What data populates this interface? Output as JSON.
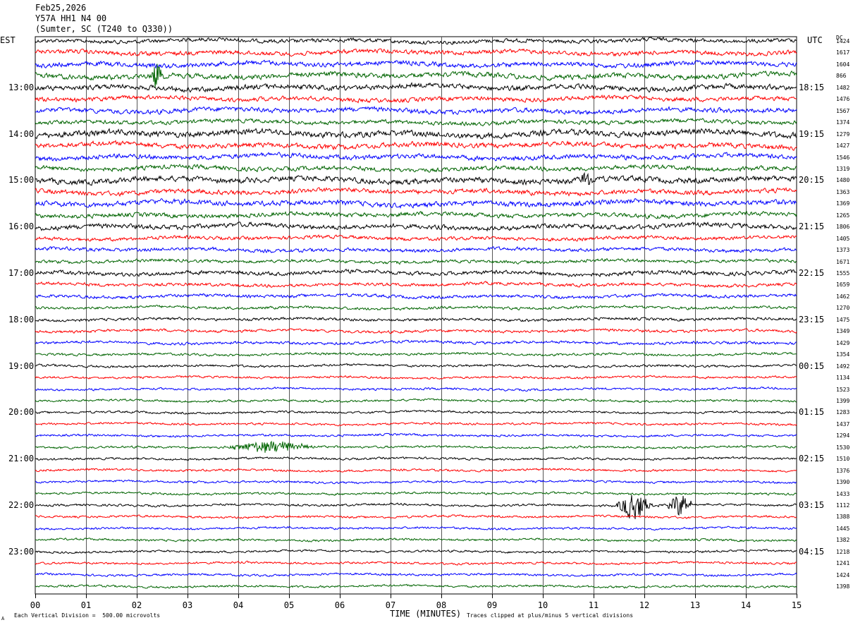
{
  "header": {
    "date": "Feb25,2026",
    "station": "Y57A HH1 N4 00",
    "location": "(Sumter, SC (T240 to Q330))"
  },
  "left_tz": "EST",
  "right_tz": "UTC",
  "dc_header": "DC",
  "footer": {
    "scale_note": "Each Vertical Division =  500.00 microvolts",
    "clip_note": "Traces clipped at plus/minus 5 vertical divisions",
    "corner_mark": "A"
  },
  "colors": {
    "trace_cycle": [
      "#000000",
      "#ff0000",
      "#0000ff",
      "#006400"
    ],
    "grid": "#000000"
  },
  "chart_data": {
    "type": "line",
    "title": "",
    "xlabel": "TIME (MINUTES)",
    "xlim": [
      0,
      15
    ],
    "x_ticks": [
      "00",
      "01",
      "02",
      "03",
      "04",
      "05",
      "06",
      "07",
      "08",
      "09",
      "10",
      "11",
      "12",
      "13",
      "14",
      "15"
    ],
    "left_hour_labels": [
      "13:00",
      "14:00",
      "15:00",
      "16:00",
      "17:00",
      "18:00",
      "19:00",
      "20:00",
      "21:00",
      "22:00",
      "23:00"
    ],
    "right_hour_labels": [
      "18:15",
      "19:15",
      "20:15",
      "21:15",
      "22:15",
      "23:15",
      "00:15",
      "01:15",
      "02:15",
      "03:15",
      "04:15"
    ],
    "first_hour_label_row": 4,
    "rows_per_hour": 4,
    "trace_dc_offsets": [
      1424,
      1617,
      1604,
      866,
      1482,
      1476,
      1567,
      1374,
      1279,
      1427,
      1546,
      1319,
      1480,
      1363,
      1369,
      1265,
      1806,
      1405,
      1373,
      1671,
      1555,
      1659,
      1462,
      1270,
      1475,
      1349,
      1429,
      1354,
      1492,
      1134,
      1523,
      1399,
      1283,
      1437,
      1294,
      1530,
      1510,
      1376,
      1390,
      1433,
      1112,
      1388,
      1445,
      1382,
      1218,
      1241,
      1424,
      1398
    ],
    "trace_amplitude_divisions": [
      2.0,
      2.2,
      2.4,
      2.6,
      2.6,
      2.2,
      2.4,
      2.0,
      3.0,
      2.6,
      2.4,
      2.2,
      2.8,
      2.4,
      2.6,
      2.2,
      2.4,
      1.8,
      1.8,
      1.6,
      2.0,
      1.6,
      1.6,
      1.4,
      1.4,
      1.4,
      1.4,
      1.2,
      1.2,
      1.1,
      1.1,
      1.1,
      1.1,
      1.1,
      1.1,
      1.1,
      1.1,
      1.1,
      1.1,
      1.1,
      1.1,
      1.1,
      1.1,
      1.1,
      1.1,
      1.1,
      1.1,
      1.1
    ],
    "events": [
      {
        "trace": 3,
        "minute": 2.4,
        "amplitude_divisions": 5,
        "duration_minutes": 0.12
      },
      {
        "trace": 12,
        "minute": 10.85,
        "amplitude_divisions": 3,
        "duration_minutes": 0.15
      },
      {
        "trace": 35,
        "minute": 4.6,
        "amplitude_divisions": 2,
        "duration_minutes": 0.9
      },
      {
        "trace": 40,
        "minute": 11.8,
        "amplitude_divisions": 5,
        "duration_minutes": 0.35
      },
      {
        "trace": 40,
        "minute": 12.7,
        "amplitude_divisions": 4,
        "duration_minutes": 0.25
      }
    ]
  }
}
